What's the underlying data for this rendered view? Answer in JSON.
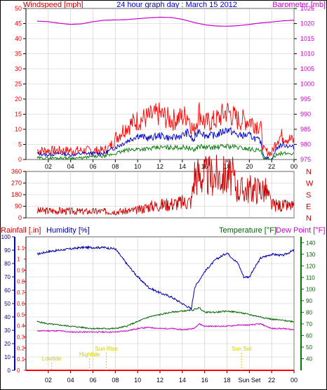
{
  "page": {
    "title": "24 hour graph day : March 15 2012"
  },
  "colors": {
    "wind": "#ff0000",
    "gust_avg": "#0000cc",
    "wind_low": "#007700",
    "barometer": "#cc00cc",
    "direction": "#cc0000",
    "rain": "#ff0000",
    "humidity": "#0000aa",
    "temperature": "#006600",
    "dewpoint": "#cc00cc",
    "sun_labels": "#cccc00",
    "axis_black": "#000000"
  },
  "chart_data": [
    {
      "type": "line",
      "panel": "wind-barometer",
      "left_axis_label": "Windspeed [mph]",
      "right_axis_label": "Barometer [mb]",
      "left_ylim": [
        0,
        50
      ],
      "left_ticks": [
        "0",
        "5",
        "10",
        "15",
        "20",
        "25",
        "30",
        "35",
        "40",
        "45",
        "50"
      ],
      "right_ylim": [
        975,
        1025
      ],
      "right_ticks": [
        "975",
        "980",
        "985",
        "990",
        "995",
        "1000",
        "1005",
        "1010",
        "1015",
        "1020",
        "1025"
      ],
      "x_ticks": [
        "02",
        "04",
        "06",
        "08",
        "10",
        "12",
        "14",
        "16",
        "18",
        "20",
        "22",
        "00"
      ],
      "series": [
        {
          "key": "wind_hi",
          "x": [
            1,
            2,
            3,
            4,
            5,
            6,
            7,
            7.5,
            8,
            9,
            10,
            11,
            12,
            13,
            14,
            14.5,
            15,
            15.5,
            16,
            17,
            18,
            19,
            20,
            21,
            21.3,
            22,
            22.5,
            23,
            24
          ],
          "values": [
            3,
            3,
            3,
            3,
            3,
            3,
            3,
            4,
            7,
            11,
            13,
            14,
            15,
            13,
            14,
            15,
            9,
            16,
            12,
            13,
            16,
            13,
            13,
            11,
            3,
            2,
            7,
            8,
            6
          ]
        },
        {
          "key": "wind_avg",
          "x": [
            1,
            2,
            3,
            4,
            5,
            6,
            7,
            7.5,
            8,
            9,
            10,
            11,
            12,
            13,
            14,
            14.5,
            15,
            15.5,
            16,
            17,
            18,
            19,
            20,
            21,
            21.3,
            22,
            22.5,
            23,
            24
          ],
          "values": [
            2,
            1.5,
            2,
            1.5,
            2,
            2,
            2,
            3,
            4,
            6,
            8,
            7,
            8,
            7,
            8,
            9,
            6,
            10,
            8,
            8,
            10,
            8,
            8,
            6,
            1,
            0,
            4,
            5,
            4
          ]
        },
        {
          "key": "wind_low",
          "x": [
            1,
            2,
            3,
            4,
            5,
            6,
            7,
            7.5,
            8,
            9,
            10,
            11,
            12,
            13,
            14,
            14.5,
            15,
            15.5,
            16,
            17,
            18,
            19,
            20,
            21,
            21.3,
            22,
            22.5,
            23,
            24
          ],
          "values": [
            0.5,
            0.5,
            0.5,
            0.5,
            0.5,
            1,
            1,
            1.5,
            2,
            3,
            3.5,
            3.5,
            4,
            4,
            4,
            4,
            3,
            4.5,
            4,
            4,
            4.5,
            4,
            3.5,
            3,
            0,
            0,
            2,
            2,
            2
          ]
        },
        {
          "key": "barometer",
          "x": [
            1,
            2,
            3,
            4,
            5,
            6,
            7,
            8,
            9,
            10,
            11,
            12,
            13,
            14,
            15,
            16,
            17,
            18,
            19,
            20,
            21,
            22,
            23,
            24
          ],
          "values": [
            1020.8,
            1020.6,
            1020.1,
            1019.7,
            1019.9,
            1020.6,
            1021.1,
            1021.2,
            1021.3,
            1021.6,
            1021.9,
            1022.1,
            1022.0,
            1021.4,
            1020.4,
            1019.6,
            1019.2,
            1019.1,
            1019.3,
            1019.7,
            1020.2,
            1020.5,
            1020.9,
            1021.1
          ]
        }
      ]
    },
    {
      "type": "line",
      "panel": "wind-direction",
      "left_ylim": [
        0,
        360
      ],
      "left_ticks": [
        "0",
        "90",
        "180",
        "270",
        "360"
      ],
      "right_ticks": [
        "N",
        "E",
        "S",
        "W",
        "N"
      ],
      "series": [
        {
          "key": "direction",
          "x": [
            1,
            2,
            3,
            4,
            5,
            6,
            7,
            8,
            9,
            10,
            11,
            12,
            13,
            14,
            14.8,
            15.1,
            16,
            17,
            18,
            18.5,
            19,
            20,
            21,
            21.5,
            22,
            23,
            24
          ],
          "values": [
            55,
            55,
            55,
            52,
            50,
            50,
            50,
            50,
            52,
            60,
            90,
            100,
            110,
            120,
            130,
            340,
            325,
            330,
            325,
            315,
            215,
            225,
            225,
            210,
            100,
            95,
            90
          ]
        }
      ]
    },
    {
      "type": "line",
      "panel": "rain-humidity-temperature",
      "legend": [
        "Rainfall [.in]",
        "Humidity [%]",
        "Temperature [°F]",
        "Dew Point [°F]"
      ],
      "rain_ylim": [
        0,
        1.2
      ],
      "rain_ticks": [
        "0",
        "0.1",
        "0.2",
        "0.3",
        "0.4",
        "0.5",
        "0.6",
        "0.7",
        "0.8",
        "0.9",
        "1",
        "1.1"
      ],
      "humidity_ylim": [
        0,
        100
      ],
      "humidity_ticks": [
        "0",
        "10",
        "20",
        "30",
        "40",
        "50",
        "60",
        "70",
        "80",
        "90",
        "100"
      ],
      "temp_ylim": [
        30,
        145
      ],
      "temp_ticks": [
        "40",
        "50",
        "60",
        "70",
        "80",
        "90",
        "100",
        "110",
        "120",
        "130",
        "140"
      ],
      "x_ticks": [
        "02",
        "04",
        "06",
        "08",
        "10",
        "12",
        "14",
        "16",
        "18",
        "Sun Set",
        "22",
        "00"
      ],
      "series": [
        {
          "key": "rain",
          "x": [
            0,
            24
          ],
          "values": [
            0,
            0
          ]
        },
        {
          "key": "humidity",
          "x": [
            1,
            2,
            3,
            4,
            5,
            6,
            7,
            8,
            9,
            10,
            11,
            12,
            13,
            14,
            14.8,
            15.1,
            16,
            17,
            18,
            19,
            19.5,
            20,
            21,
            22,
            23,
            24
          ],
          "values": [
            87,
            89,
            90,
            91,
            92,
            92,
            92,
            91,
            80,
            70,
            62,
            58,
            55,
            50,
            46,
            62,
            74,
            83,
            88,
            80,
            70,
            70,
            84,
            87,
            86,
            90
          ]
        },
        {
          "key": "temperature",
          "x": [
            1,
            2,
            3,
            4,
            5,
            6,
            7,
            8,
            9,
            10,
            11,
            12,
            13,
            14,
            15,
            15.5,
            16,
            17,
            18,
            19,
            20,
            21,
            22,
            23,
            24
          ],
          "values": [
            72,
            70,
            69,
            68,
            67,
            66,
            66,
            66,
            68,
            72,
            76,
            78,
            80,
            81,
            82,
            84,
            80,
            80,
            81,
            80,
            78,
            76,
            74,
            73,
            72
          ]
        },
        {
          "key": "dewpoint",
          "x": [
            1,
            2,
            3,
            4,
            5,
            6,
            7,
            8,
            9,
            10,
            11,
            12,
            13,
            14,
            15,
            15.5,
            16,
            17,
            18,
            19,
            20,
            21,
            22,
            23,
            24
          ],
          "values": [
            64,
            64,
            64,
            63,
            63,
            63,
            63,
            63,
            64,
            66,
            67,
            66,
            66,
            65,
            66,
            70,
            68,
            68,
            68,
            69,
            69,
            70,
            66,
            66,
            65
          ]
        }
      ],
      "annotations": [
        {
          "key": "lowtide",
          "label": "Lowtide",
          "x": 2.3
        },
        {
          "key": "hightide",
          "label": "Hightide",
          "x": 5.7
        },
        {
          "key": "sunrise",
          "label": "Sun Rise",
          "x": 7.2
        },
        {
          "key": "sunset",
          "label": "Sun Set",
          "x": 19.3
        }
      ]
    }
  ]
}
